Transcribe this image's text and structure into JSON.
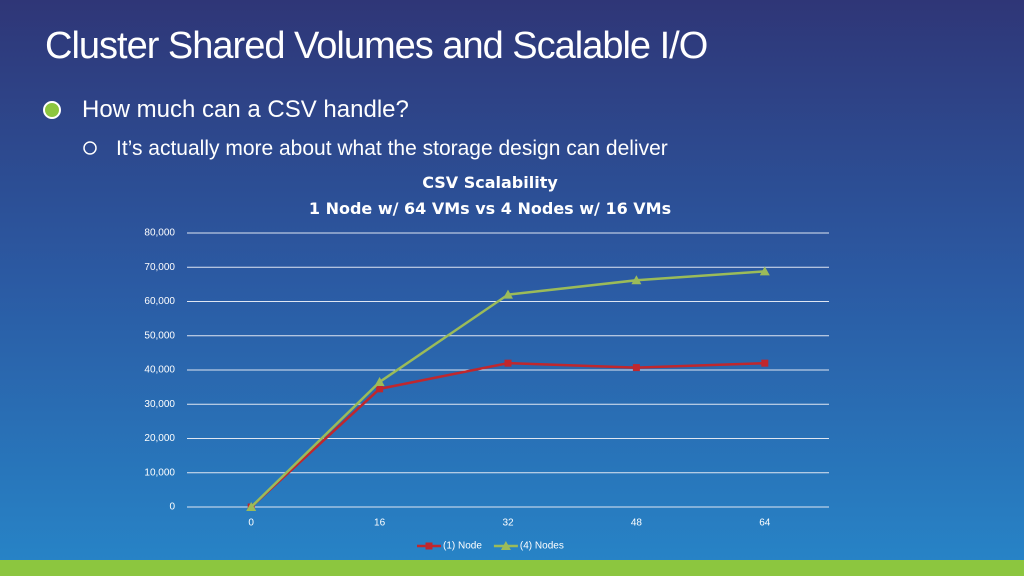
{
  "slide": {
    "title": "Cluster Shared Volumes and Scalable I/O",
    "bullets": [
      "How much can a CSV handle?",
      "It’s actually more about what the storage design can deliver"
    ]
  },
  "chart_data": {
    "type": "line",
    "title": "CSV Scalability",
    "subtitle": "1 Node w/ 64 VMs vs 4 Nodes w/ 16 VMs",
    "categories": [
      "0",
      "16",
      "32",
      "48",
      "64"
    ],
    "series": [
      {
        "name": "(1) Node",
        "color": "#c0272d",
        "marker": "square",
        "values": [
          0,
          34500,
          42000,
          40700,
          42000
        ]
      },
      {
        "name": "(4) Nodes",
        "color": "#9bbb59",
        "marker": "triangle",
        "values": [
          0,
          36500,
          62000,
          66200,
          68800
        ]
      }
    ],
    "ylim": [
      0,
      80000
    ],
    "yticks": [
      0,
      {
        "value": 10000,
        "label": "10,000"
      },
      {
        "value": 20000,
        "label": "20,000"
      },
      {
        "value": 30000,
        "label": "30,000"
      },
      {
        "value": 40000,
        "label": "40,000"
      },
      {
        "value": 50000,
        "label": "50,000"
      },
      {
        "value": 60000,
        "label": "60,000"
      },
      {
        "value": 70000,
        "label": "70,000"
      },
      {
        "value": 80000,
        "label": "80,000"
      }
    ],
    "grid": true,
    "legend": "bottom"
  }
}
